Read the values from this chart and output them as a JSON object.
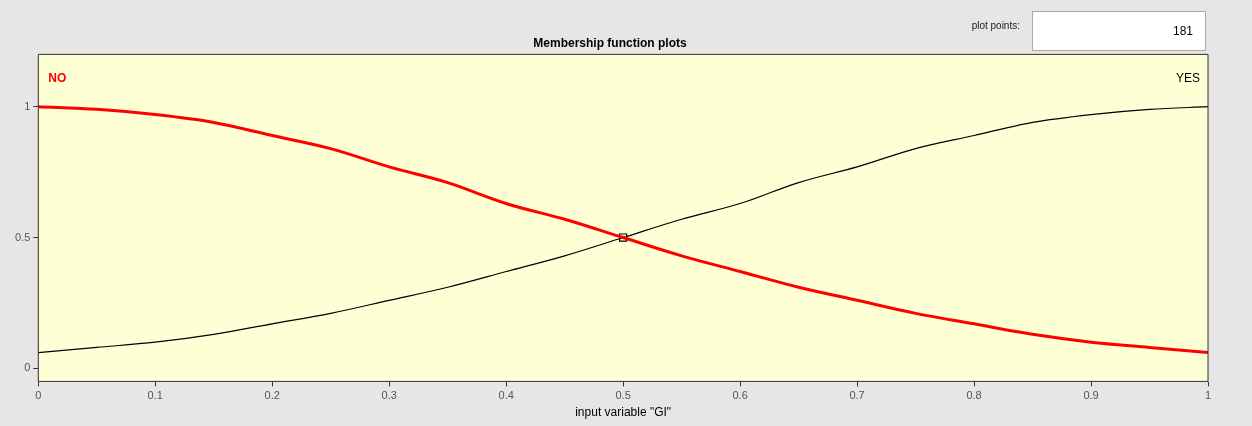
{
  "chart_data": {
    "type": "line",
    "title": "Membership function plots",
    "xlabel": "input variable \"GI\"",
    "xlim": [
      0,
      1
    ],
    "xticks": [
      0,
      0.1,
      0.2,
      0.3,
      0.4,
      0.5,
      0.6,
      0.7,
      0.8,
      0.9,
      1
    ],
    "ylim": [
      -0.05,
      1.2
    ],
    "yticks": [
      0,
      0.5,
      1
    ],
    "grid": false,
    "legend": false,
    "marker": "none",
    "line_style": "solid",
    "annotations": [
      "plot points:",
      "181"
    ],
    "x": [
      0,
      0.05,
      0.1,
      0.15,
      0.2,
      0.25,
      0.3,
      0.35,
      0.4,
      0.45,
      0.5,
      0.55,
      0.6,
      0.65,
      0.7,
      0.75,
      0.8,
      0.85,
      0.9,
      0.95,
      1
    ],
    "series": [
      {
        "name": "NO",
        "color": "#ff0000",
        "values": [
          1,
          0.99,
          0.97,
          0.94,
          0.89,
          0.84,
          0.77,
          0.71,
          0.63,
          0.57,
          0.5,
          0.43,
          0.37,
          0.31,
          0.26,
          0.21,
          0.17,
          0.13,
          0.1,
          0.08,
          0.06
        ]
      },
      {
        "name": "YES",
        "color": "#000000",
        "values": [
          0.06,
          0.08,
          0.1,
          0.13,
          0.17,
          0.21,
          0.26,
          0.31,
          0.37,
          0.43,
          0.5,
          0.57,
          0.63,
          0.71,
          0.77,
          0.84,
          0.89,
          0.94,
          0.97,
          0.99,
          1
        ]
      },
      {
        "type": "scatter",
        "marker": "square",
        "color": "#000000",
        "x": [
          0.5
        ],
        "values": [
          0.5
        ]
      }
    ]
  }
}
